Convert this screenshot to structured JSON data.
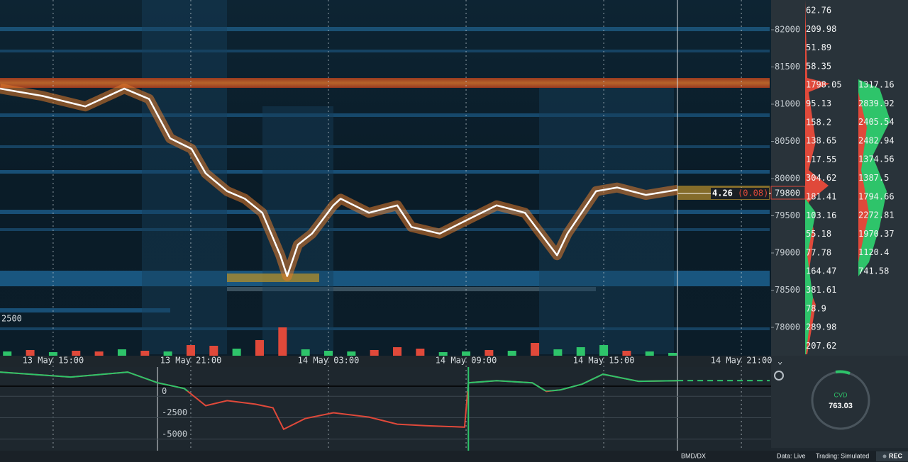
{
  "price_axis": {
    "ylim": [
      82400,
      77600
    ],
    "ticks": [
      82000,
      81500,
      81000,
      80500,
      80000,
      79500,
      79000,
      78500,
      78000
    ],
    "current": 79800
  },
  "book_column_1": [
    62.76,
    209.98,
    51.89,
    58.35,
    1798.05,
    95.13,
    158.2,
    138.65,
    117.55,
    304.62,
    181.41,
    103.16,
    55.18,
    77.78,
    164.47,
    381.61,
    78.9,
    289.98,
    207.62
  ],
  "book_column_2": [
    1317.16,
    2839.92,
    2405.54,
    2482.94,
    1374.56,
    1387.5,
    1794.66,
    2272.81,
    1970.37,
    1120.4,
    741.58
  ],
  "time_axis": {
    "xlim": [
      "13 May 12:41",
      "14 May 22:14"
    ],
    "labels": [
      "13 May 15:00",
      "13 May 21:00",
      "14 May 03:00",
      "14 May 09:00",
      "14 May 15:00",
      "14 May 21:00"
    ]
  },
  "left_label": 2500,
  "price_tag": {
    "size": 4.26,
    "change": "(0.08)"
  },
  "price_trace": {
    "x": [
      "13 May 12:41",
      "13 May 14:32",
      "13 May 16:24",
      "13 May 18:06",
      "13 May 19:11",
      "13 May 20:06",
      "13 May 21:02",
      "13 May 21:39",
      "13 May 22:35",
      "13 May 23:21",
      "14 May 00:07",
      "14 May 00:54",
      "14 May 01:12",
      "14 May 01:40",
      "14 May 02:17",
      "14 May 03:13",
      "14 May 03:32",
      "14 May 04:46",
      "14 May 06:00",
      "14 May 06:37",
      "14 May 07:51",
      "14 May 09:05",
      "14 May 10:20",
      "14 May 11:34",
      "14 May 12:30",
      "14 May 12:58",
      "14 May 13:25",
      "14 May 14:40",
      "14 May 15:35",
      "14 May 16:50",
      "14 May 18:13"
    ],
    "values": [
      81210,
      81110,
      80970,
      81210,
      81070,
      80540,
      80400,
      80070,
      79830,
      79730,
      79540,
      78970,
      78690,
      79110,
      79260,
      79640,
      79730,
      79540,
      79640,
      79350,
      79260,
      79450,
      79640,
      79540,
      79160,
      78970,
      79260,
      79830,
      79880,
      79780,
      79850
    ]
  },
  "volume_bars": {
    "x": [
      "13 May 13:00",
      "13 May 14:00",
      "13 May 15:00",
      "13 May 16:00",
      "13 May 17:00",
      "13 May 18:00",
      "13 May 19:00",
      "13 May 20:00",
      "13 May 21:00",
      "13 May 22:00",
      "13 May 23:00",
      "14 May 00:00",
      "14 May 01:00",
      "14 May 02:00",
      "14 May 03:00",
      "14 May 04:00",
      "14 May 05:00",
      "14 May 06:00",
      "14 May 07:00",
      "14 May 08:00",
      "14 May 09:00",
      "14 May 10:00",
      "14 May 11:00",
      "14 May 12:00",
      "14 May 13:00",
      "14 May 14:00",
      "14 May 15:00",
      "14 May 16:00",
      "14 May 17:00",
      "14 May 18:00"
    ],
    "values": [
      6,
      8,
      5,
      7,
      6,
      9,
      7,
      6,
      15,
      14,
      10,
      22,
      40,
      9,
      7,
      6,
      8,
      12,
      10,
      5,
      6,
      8,
      7,
      18,
      9,
      12,
      15,
      7,
      6,
      4
    ],
    "colors": [
      "#2ec46a",
      "#e0493a",
      "#2ec46a",
      "#e0493a",
      "#e0493a",
      "#2ec46a",
      "#e0493a",
      "#2ec46a",
      "#e0493a",
      "#e0493a",
      "#2ec46a",
      "#e0493a",
      "#e0493a",
      "#2ec46a",
      "#2ec46a",
      "#2ec46a",
      "#e0493a",
      "#e0493a",
      "#e0493a",
      "#2ec46a",
      "#2ec46a",
      "#e0493a",
      "#2ec46a",
      "#e0493a",
      "#2ec46a",
      "#2ec46a",
      "#2ec46a",
      "#e0493a",
      "#2ec46a",
      "#2ec46a"
    ]
  },
  "cvd": {
    "ylim": [
      2833,
      -6917
    ],
    "yticks": [
      0,
      -2500,
      -5000
    ],
    "x": [
      "13 May 12:41",
      "13 May 15:46",
      "13 May 18:15",
      "13 May 19:33",
      "13 May 20:43",
      "13 May 21:39",
      "13 May 22:35",
      "13 May 23:49",
      "14 May 00:35",
      "14 May 01:03",
      "14 May 01:59",
      "14 May 03:13",
      "14 May 04:46",
      "14 May 06:00",
      "14 May 07:14",
      "14 May 08:56",
      "14 May 09:06",
      "14 May 10:20",
      "14 May 11:53",
      "14 May 12:30",
      "14 May 13:07",
      "14 May 14:03",
      "14 May 14:58",
      "14 May 16:31",
      "14 May 18:13"
    ],
    "values": [
      2250,
      1670,
      2250,
      1000,
      330,
      -1670,
      -1080,
      -1500,
      -1920,
      -4420,
      -3170,
      -2500,
      -3000,
      -3830,
      -4000,
      -4170,
      1000,
      1250,
      1000,
      0,
      170,
      830,
      2000,
      1170,
      1250
    ],
    "gauge_label": "CVD",
    "gauge_value": 763.03
  },
  "status": {
    "symbol": "BMD/DX",
    "data": "Data: Live",
    "trading": "Trading: Simulated",
    "rec": "REC"
  }
}
